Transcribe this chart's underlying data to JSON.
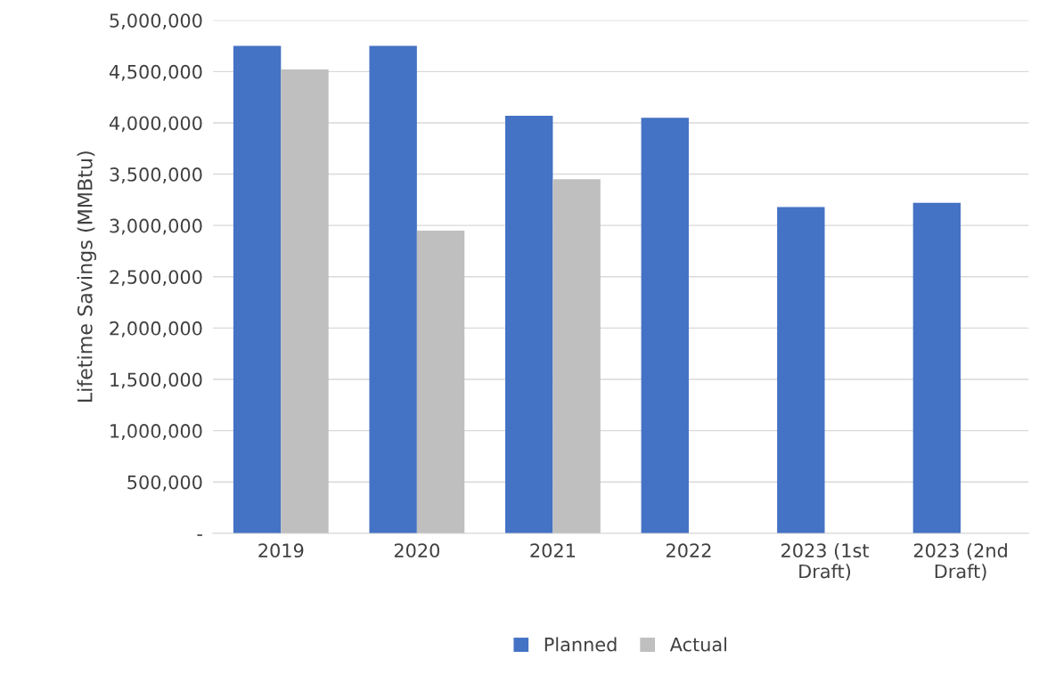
{
  "chart_data": {
    "type": "bar",
    "ylabel": "Lifetime Savings (MMBtu)",
    "categories": [
      "2019",
      "2020",
      "2021",
      "2022",
      "2023 (1st\nDraft)",
      "2023 (2nd\nDraft)"
    ],
    "series": [
      {
        "name": "Planned",
        "color": "#4472c4",
        "values": [
          4750000,
          4750000,
          4070000,
          4050000,
          3180000,
          3220000
        ]
      },
      {
        "name": "Actual",
        "color": "#bfbfbf",
        "values": [
          4520000,
          2950000,
          3450000,
          null,
          null,
          null
        ]
      }
    ],
    "ylim": [
      0,
      5000000
    ],
    "yticks": [
      {
        "value": 0,
        "label": "-"
      },
      {
        "value": 500000,
        "label": "500,000"
      },
      {
        "value": 1000000,
        "label": "1,000,000"
      },
      {
        "value": 1500000,
        "label": "1,500,000"
      },
      {
        "value": 2000000,
        "label": "2,000,000"
      },
      {
        "value": 2500000,
        "label": "2,500,000"
      },
      {
        "value": 3000000,
        "label": "3,000,000"
      },
      {
        "value": 3500000,
        "label": "3,500,000"
      },
      {
        "value": 4000000,
        "label": "4,000,000"
      },
      {
        "value": 4500000,
        "label": "4,500,000"
      },
      {
        "value": 5000000,
        "label": "5,000,000"
      }
    ],
    "grid": "y",
    "legend": "bottom"
  }
}
